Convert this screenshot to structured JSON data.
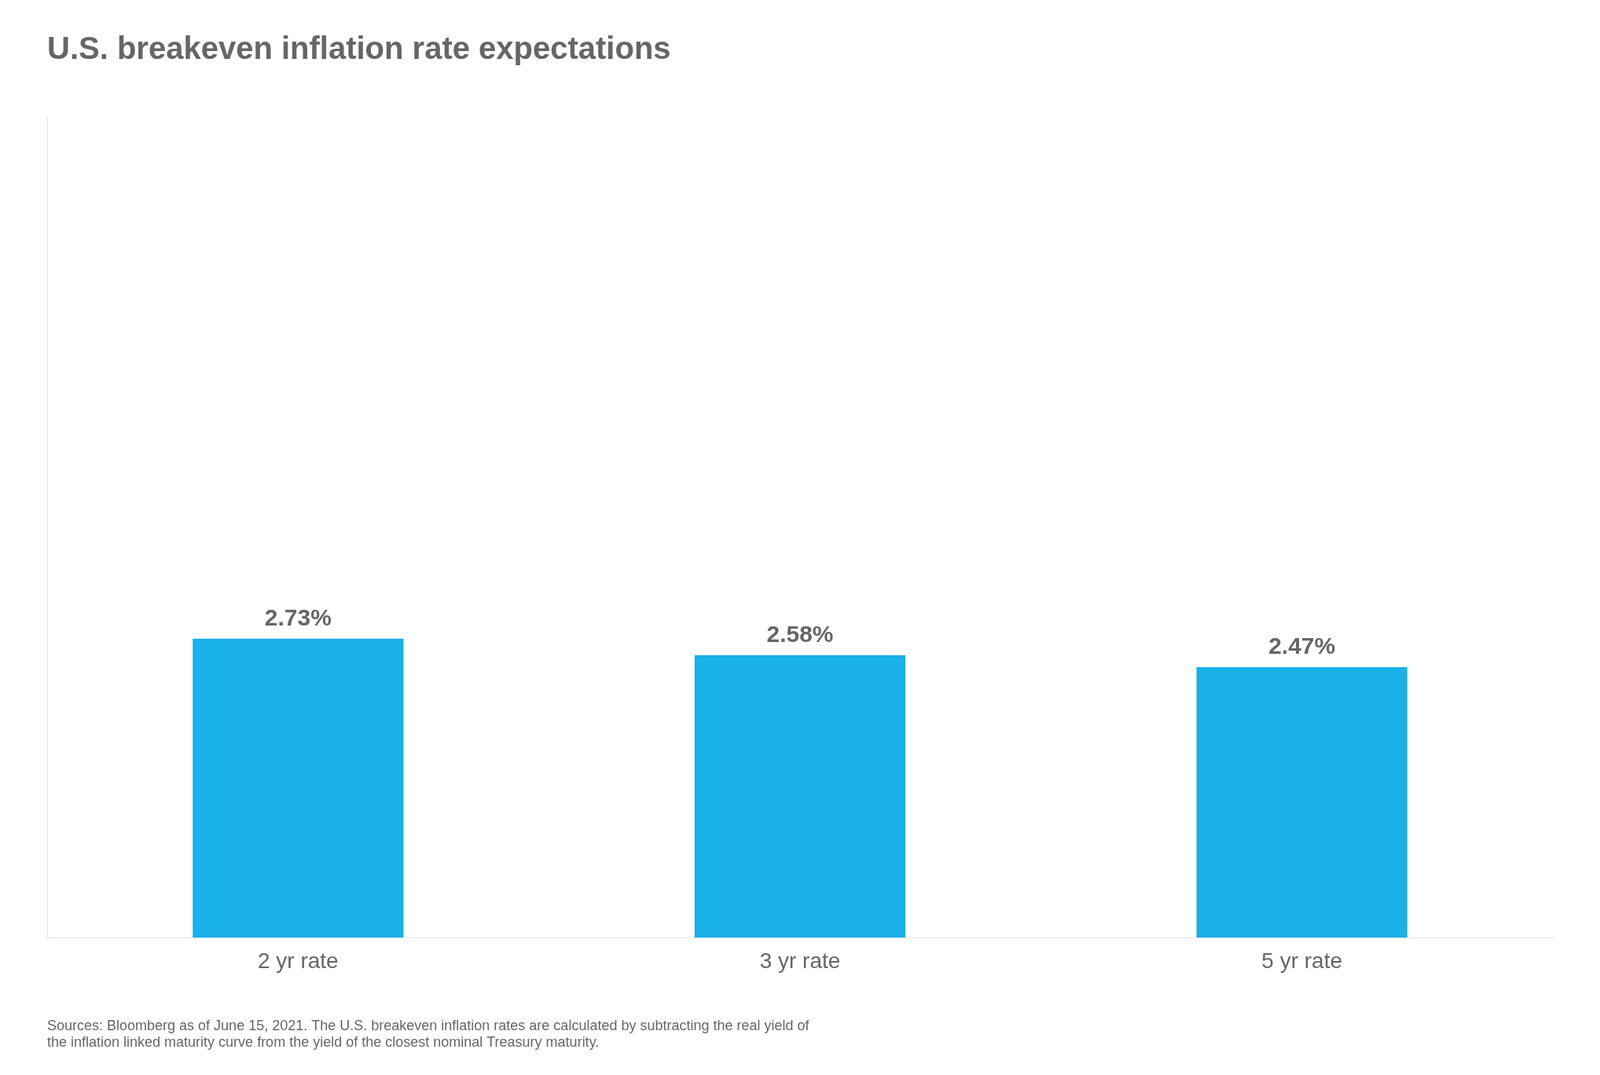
{
  "chart_data": {
    "type": "bar",
    "title": "U.S. breakeven inflation rate expectations",
    "categories": [
      "2 yr rate",
      "3 yr rate",
      "5 yr rate"
    ],
    "values": [
      2.73,
      2.58,
      2.47
    ],
    "value_labels": [
      "2.73%",
      "2.58%",
      "2.47%"
    ],
    "data_labels": true,
    "color": "#1AB0E8",
    "ylim": [
      0,
      7.5
    ],
    "tick_labels": "x",
    "grid": false,
    "annotations": [
      "Sources: Bloomberg as of June 15, 2021. The U.S. breakeven inflation rates are calculated by subtracting the real yield of\nthe inflation linked maturity curve from the yield of the closest nominal Treasury maturity."
    ]
  }
}
